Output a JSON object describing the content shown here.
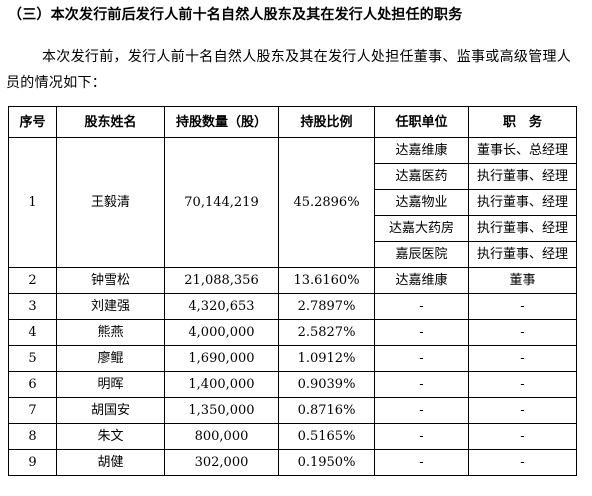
{
  "heading": "（三）本次发行前后发行人前十名自然人股东及其在发行人处担任的职务",
  "paragraph": "本次发行前，发行人前十名自然人股东及其在发行人处担任董事、监事或高级管理人员的情况如下：",
  "table": {
    "headers": [
      "序号",
      "股东姓名",
      "持股数量（股）",
      "持股比例",
      "任职单位",
      "职　务"
    ],
    "first": {
      "no": "1",
      "name": "王毅清",
      "shares": "70,144,219",
      "ratio": "45.2896%",
      "positions": [
        {
          "unit": "达嘉维康",
          "title": "董事长、总经理"
        },
        {
          "unit": "达嘉医药",
          "title": "执行董事、经理"
        },
        {
          "unit": "达嘉物业",
          "title": "执行董事、经理"
        },
        {
          "unit": "达嘉大药房",
          "title": "执行董事、经理"
        },
        {
          "unit": "嘉辰医院",
          "title": "执行董事、经理"
        }
      ]
    },
    "rows": [
      {
        "no": "2",
        "name": "钟雪松",
        "shares": "21,088,356",
        "ratio": "13.6160%",
        "unit": "达嘉维康",
        "title": "董事"
      },
      {
        "no": "3",
        "name": "刘建强",
        "shares": "4,320,653",
        "ratio": "2.7897%",
        "unit": "-",
        "title": "-"
      },
      {
        "no": "4",
        "name": "熊燕",
        "shares": "4,000,000",
        "ratio": "2.5827%",
        "unit": "-",
        "title": "-"
      },
      {
        "no": "5",
        "name": "廖鲲",
        "shares": "1,690,000",
        "ratio": "1.0912%",
        "unit": "-",
        "title": "-"
      },
      {
        "no": "6",
        "name": "明晖",
        "shares": "1,400,000",
        "ratio": "0.9039%",
        "unit": "-",
        "title": "-"
      },
      {
        "no": "7",
        "name": "胡国安",
        "shares": "1,350,000",
        "ratio": "0.8716%",
        "unit": "-",
        "title": "-"
      },
      {
        "no": "8",
        "name": "朱文",
        "shares": "800,000",
        "ratio": "0.5165%",
        "unit": "-",
        "title": "-"
      },
      {
        "no": "9",
        "name": "胡健",
        "shares": "302,000",
        "ratio": "0.1950%",
        "unit": "-",
        "title": "-"
      }
    ]
  }
}
